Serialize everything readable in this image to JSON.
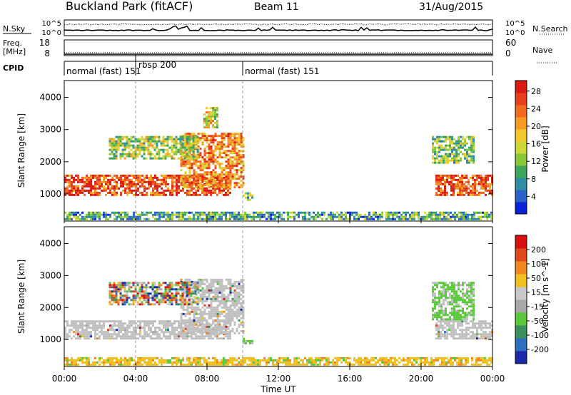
{
  "header": {
    "station": "Buckland Park (fitACF)",
    "beam": "Beam 11",
    "date": "31/Aug/2015"
  },
  "strip_panels": {
    "noise": {
      "left_label": "N.Sky",
      "right_label": "N.Search",
      "left_ticks": [
        "10^5",
        "10^0"
      ],
      "right_ticks": [
        "10^5",
        "10^0"
      ]
    },
    "freq": {
      "left_label_1": "Freq.",
      "left_label_2": "[MHz]",
      "right_label": "Nave",
      "left_ticks": [
        "18",
        "8"
      ],
      "right_ticks": [
        "60",
        "0"
      ]
    },
    "cpid": {
      "label": "CPID",
      "segments": [
        {
          "label": "normal (fast) 151",
          "start_hr": 0,
          "end_hr": 4.0
        },
        {
          "label": "rbsp 200",
          "start_hr": 4.0,
          "end_hr": 10.0
        },
        {
          "label": "normal (fast) 151",
          "start_hr": 10.0,
          "end_hr": 24.0
        }
      ]
    }
  },
  "chart_data": [
    {
      "type": "heatmap",
      "name": "power",
      "ylabel": "Slant Range [km]",
      "ylim": [
        180,
        4500
      ],
      "yticks": [
        1000,
        2000,
        3000,
        4000
      ],
      "xlim": [
        0,
        24
      ],
      "colorbar": {
        "label": "Power [dB]",
        "ticks": [
          "4",
          "8",
          "12",
          "16",
          "20",
          "24",
          "28"
        ],
        "colors": [
          "#0a22d8",
          "#2b62c8",
          "#2f8fa2",
          "#3ea65a",
          "#86c83a",
          "#cfd637",
          "#f3c82a",
          "#f79a22",
          "#f26a1e",
          "#e8401b",
          "#dc1a14"
        ]
      },
      "features": [
        {
          "desc": "main echo band",
          "start_hr": 0.0,
          "end_hr": 9.3,
          "range_min": 1000,
          "range_max": 1600,
          "level": 0.85
        },
        {
          "desc": "rising echo",
          "start_hr": 6.5,
          "end_hr": 10.0,
          "range_min": 1200,
          "range_max": 2900,
          "level": 0.7
        },
        {
          "desc": "upper band",
          "start_hr": 2.5,
          "end_hr": 7.5,
          "range_min": 2100,
          "range_max": 2800,
          "level": 0.45
        },
        {
          "desc": "upper patch",
          "start_hr": 7.8,
          "end_hr": 8.6,
          "range_min": 3100,
          "range_max": 3700,
          "level": 0.55
        },
        {
          "desc": "short patch",
          "start_hr": 10.0,
          "end_hr": 10.6,
          "range_min": 850,
          "range_max": 1050,
          "level": 0.4
        },
        {
          "desc": "evening band",
          "start_hr": 20.8,
          "end_hr": 24.0,
          "range_min": 1000,
          "range_max": 1600,
          "level": 0.85
        },
        {
          "desc": "evening upper",
          "start_hr": 20.6,
          "end_hr": 23.0,
          "range_min": 2000,
          "range_max": 2800,
          "level": 0.4
        },
        {
          "desc": "ground scatter",
          "start_hr": 0.0,
          "end_hr": 24.0,
          "range_min": 200,
          "range_max": 450,
          "level": 0.3
        }
      ]
    },
    {
      "type": "heatmap",
      "name": "velocity",
      "xlabel": "Time UT",
      "ylabel": "Slant Range [km]",
      "ylim": [
        180,
        4500
      ],
      "yticks": [
        1000,
        2000,
        3000,
        4000
      ],
      "xlim": [
        0,
        24
      ],
      "xticks": [
        "00:00",
        "04:00",
        "08:00",
        "12:00",
        "16:00",
        "20:00",
        "00:00"
      ],
      "colorbar": {
        "label": "Velocity [m s^-1]",
        "ticks": [
          "200",
          "100",
          "50",
          "15",
          "-15",
          "-50",
          "-100",
          "-200"
        ],
        "colors": [
          "#1a2aa8",
          "#2c6fbf",
          "#3a8f5a",
          "#5ac83a",
          "#a8a8a8",
          "#c8c8c8",
          "#f0c020",
          "#f08a20",
          "#e04818",
          "#d81010"
        ]
      },
      "features": [
        {
          "desc": "main band",
          "start_hr": 0.0,
          "end_hr": 9.3,
          "range_min": 1000,
          "range_max": 1600,
          "tone": "gray"
        },
        {
          "desc": "rising echo",
          "start_hr": 6.5,
          "end_hr": 10.0,
          "range_min": 1200,
          "range_max": 2900,
          "tone": "gray"
        },
        {
          "desc": "upper mixed",
          "start_hr": 2.5,
          "end_hr": 7.5,
          "range_min": 2100,
          "range_max": 2800,
          "tone": "mixed"
        },
        {
          "desc": "green patch",
          "start_hr": 10.0,
          "end_hr": 10.6,
          "range_min": 850,
          "range_max": 1050,
          "tone": "green"
        },
        {
          "desc": "evening gray",
          "start_hr": 20.8,
          "end_hr": 24.0,
          "range_min": 1000,
          "range_max": 1600,
          "tone": "gray"
        },
        {
          "desc": "evening green",
          "start_hr": 20.6,
          "end_hr": 23.0,
          "range_min": 1600,
          "range_max": 2800,
          "tone": "green"
        },
        {
          "desc": "ground scatter",
          "start_hr": 0.0,
          "end_hr": 24.0,
          "range_min": 200,
          "range_max": 450,
          "tone": "orange"
        }
      ]
    }
  ]
}
